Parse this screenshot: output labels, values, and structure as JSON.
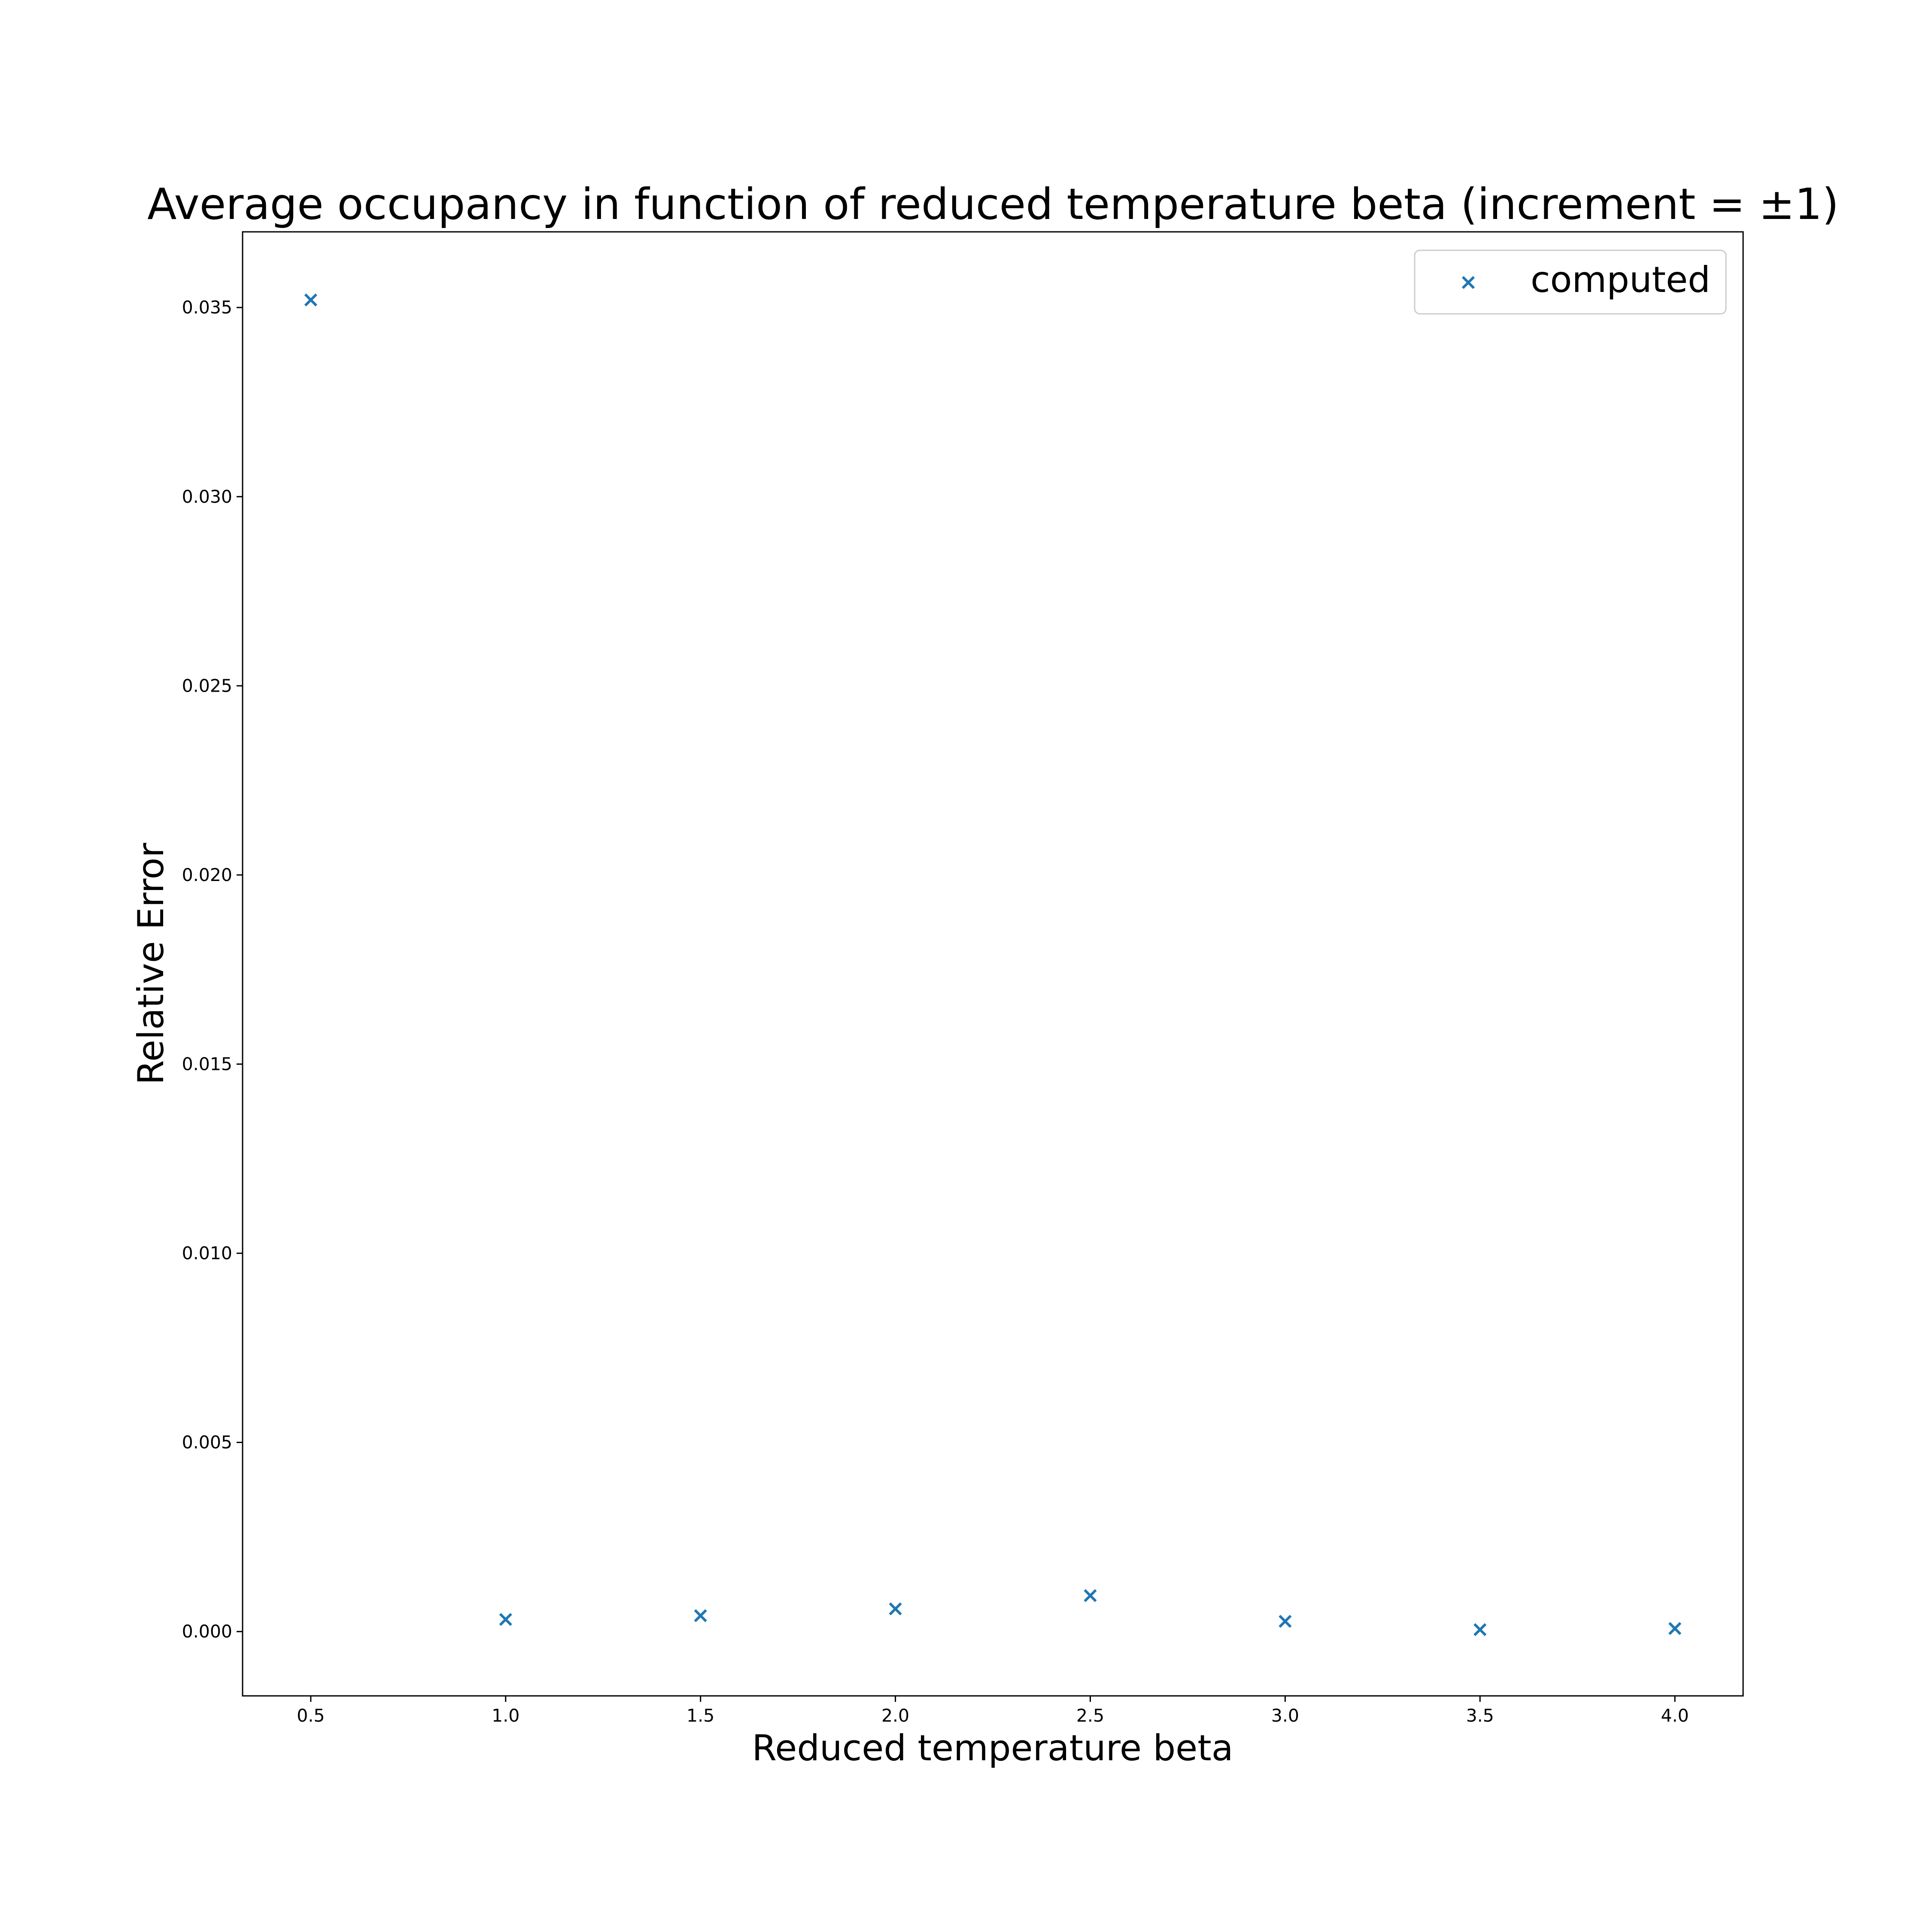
{
  "chart_data": {
    "type": "scatter",
    "title": "Average occupancy in function of reduced temperature beta (increment = ±1)",
    "xlabel": "Reduced temperature beta",
    "ylabel": "Relative Error",
    "xlim": [
      0.325,
      4.175
    ],
    "ylim": [
      -0.0017,
      0.037
    ],
    "xticks": [
      0.5,
      1.0,
      1.5,
      2.0,
      2.5,
      3.0,
      3.5,
      4.0
    ],
    "xtick_labels": [
      "0.5",
      "1.0",
      "1.5",
      "2.0",
      "2.5",
      "3.0",
      "3.5",
      "4.0"
    ],
    "yticks": [
      0.0,
      0.005,
      0.01,
      0.015,
      0.02,
      0.025,
      0.03,
      0.035
    ],
    "ytick_labels": [
      "0.000",
      "0.005",
      "0.010",
      "0.015",
      "0.020",
      "0.025",
      "0.030",
      "0.035"
    ],
    "grid": false,
    "legend_position": "top-right",
    "series": [
      {
        "name": "computed",
        "marker": "x",
        "color": "#1f77b4",
        "x": [
          0.5,
          1.0,
          1.5,
          2.0,
          2.5,
          3.0,
          3.5,
          4.0
        ],
        "y": [
          0.0352,
          0.00032,
          0.00042,
          0.0006,
          0.00095,
          0.00027,
          5e-05,
          8e-05
        ]
      }
    ]
  }
}
